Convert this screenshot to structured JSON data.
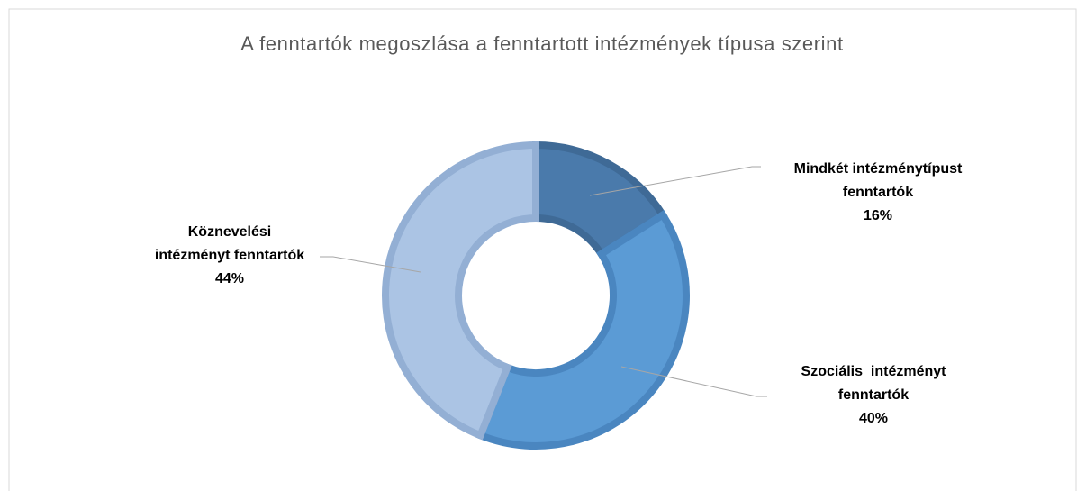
{
  "chart_data": {
    "type": "donut",
    "title": "A fenntartók megoszlása a fenntartott intézmények típusa szerint",
    "categories": [
      "Mindkét intézménytípust fenntartók",
      "Szociális  intézményt fenntartók",
      "Köznevelési intézményt fenntartók"
    ],
    "values": [
      16,
      40,
      44
    ],
    "value_labels": [
      "16%",
      "40%",
      "44%"
    ],
    "colors": [
      "#4a7aab",
      "#5b9bd5",
      "#abc4e4"
    ]
  }
}
